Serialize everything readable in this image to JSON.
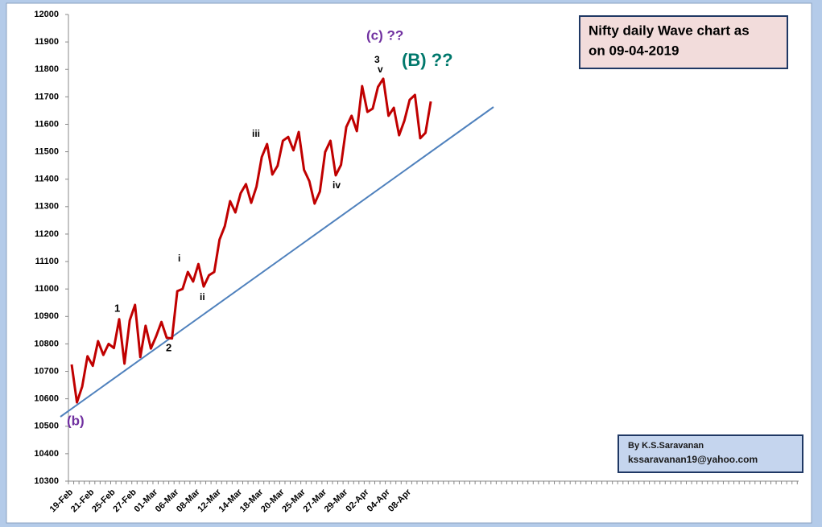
{
  "chart_data": {
    "type": "line",
    "title": [
      "Nifty  daily  Wave chart as",
      "on 09-04-2019"
    ],
    "credit": [
      "By K.S.Saravanan",
      "kssaravanan19@yahoo.com"
    ],
    "annotations": [
      "(c) ??",
      "3",
      "v",
      "(B) ??",
      "iii",
      "iv",
      "i",
      "ii",
      "1",
      "2",
      "(b)"
    ],
    "categories": [
      "19-Feb",
      null,
      null,
      null,
      "21-Feb",
      null,
      null,
      null,
      "25-Feb",
      null,
      null,
      null,
      "27-Feb",
      null,
      null,
      null,
      "01-Mar",
      null,
      null,
      null,
      "06-Mar",
      null,
      null,
      null,
      "08-Mar",
      null,
      null,
      null,
      "12-Mar",
      null,
      null,
      null,
      "14-Mar",
      null,
      null,
      null,
      "18-Mar",
      null,
      null,
      null,
      "20-Mar",
      null,
      null,
      null,
      "25-Mar",
      null,
      null,
      null,
      "27-Mar",
      null,
      null,
      null,
      "29-Mar",
      null,
      null,
      null,
      "02-Apr",
      null,
      null,
      null,
      "04-Apr",
      null,
      null,
      null,
      "08-Apr",
      null,
      null,
      null,
      null
    ],
    "series": [
      {
        "name": "Nifty",
        "color": "#c00000",
        "values": [
          10725,
          10587,
          10645,
          10755,
          10720,
          10810,
          10760,
          10800,
          10785,
          10890,
          10728,
          10886,
          10942,
          10752,
          10866,
          10783,
          10828,
          10880,
          10822,
          10820,
          10992,
          11000,
          11062,
          11027,
          11091,
          11009,
          11050,
          11062,
          11180,
          11229,
          11320,
          11279,
          11349,
          11382,
          11314,
          11373,
          11481,
          11528,
          11417,
          11449,
          11540,
          11554,
          11505,
          11572,
          11434,
          11393,
          11311,
          11355,
          11499,
          11540,
          11414,
          11452,
          11590,
          11631,
          11575,
          11739,
          11645,
          11657,
          11736,
          11766,
          11631,
          11660,
          11560,
          11613,
          11689,
          11707,
          11549,
          11569,
          11683
        ]
      }
    ],
    "ylim": [
      10300,
      12000
    ],
    "yticks": [
      10300,
      10400,
      10500,
      10600,
      10700,
      10800,
      10900,
      11000,
      11100,
      11200,
      11300,
      11400,
      11500,
      11600,
      11700,
      11800,
      11900,
      12000
    ],
    "grid": false
  }
}
